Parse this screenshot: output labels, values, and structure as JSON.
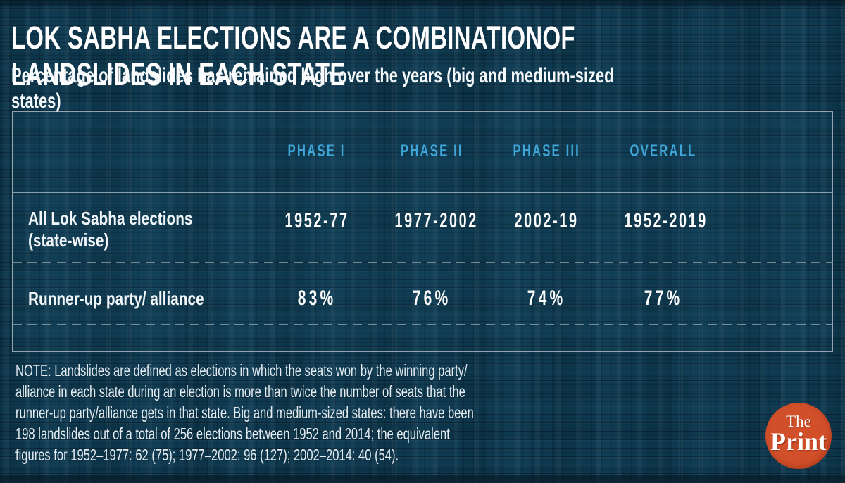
{
  "colors": {
    "background": "#0e3950",
    "accent_blue": "#3fa6da",
    "logo_orange": "#d1502a",
    "text_white": "#ffffff",
    "divider_gray": "#c4d2d9"
  },
  "header": {
    "title": "LOK SABHA ELECTIONS ARE A COMBINATIONOF LANDSLIDES IN EACH STATE",
    "subtitle": "Percentage of landslides has remained high over the years (big and medium-sized states)"
  },
  "table": {
    "column_headers": [
      "PHASE I",
      "PHASE II",
      "PHASE III",
      "OVERALL"
    ],
    "rows": [
      {
        "label_lines": [
          "All Lok Sabha elections",
          "(state-wise)"
        ],
        "values": [
          "1952-77",
          "1977-2002",
          "2002-19",
          "1952-2019"
        ]
      },
      {
        "label_lines": [
          "Runner-up party/ alliance"
        ],
        "values": [
          "83%",
          "76%",
          "74%",
          "77%"
        ]
      }
    ]
  },
  "note_lines": [
    "NOTE: Landslides are defined as elections in which the seats won by the winning party/",
    "alliance in each state during an election is more than twice the number of seats that the",
    "runner-up party/alliance gets in that state. Big and medium-sized states: there have been",
    "198 landslides out of a total of 256 elections between 1952 and 2014; the equivalent",
    "figures for 1952–1977: 62 (75); 1977–2002: 96 (127); 2002–2014: 40 (54)."
  ],
  "logo": {
    "top": "The",
    "bottom": "Print"
  },
  "chart_data": {
    "type": "table",
    "title": "LOK SABHA ELECTIONS ARE A COMBINATIONOF LANDSLIDES IN EACH STATE",
    "subtitle": "Percentage of landslides has remained high over the years (big and medium-sized states)",
    "columns": [
      "PHASE I",
      "PHASE II",
      "PHASE III",
      "OVERALL"
    ],
    "rows": [
      {
        "label": "All Lok Sabha elections (state-wise)",
        "values": [
          "1952-77",
          "1977-2002",
          "2002-19",
          "1952-2019"
        ]
      },
      {
        "label": "Runner-up party/ alliance",
        "values": [
          "83%",
          "76%",
          "74%",
          "77%"
        ]
      }
    ],
    "landslide_percentages": {
      "PHASE I (1952-77)": 83,
      "PHASE II (1977-2002)": 76,
      "PHASE III (2002-19)": 74,
      "OVERALL (1952-2019)": 77
    }
  }
}
